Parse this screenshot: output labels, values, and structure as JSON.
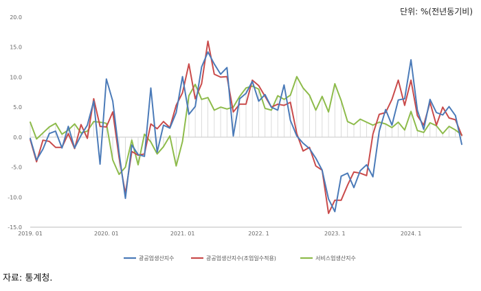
{
  "unit_label": "단위: %(전년동기비)",
  "source_label": "자료: 통계청.",
  "chart_data": {
    "type": "line",
    "title": "",
    "xlabel": "",
    "ylabel": "",
    "ylim": [
      -15,
      20
    ],
    "yticks": [
      "20.0",
      "15.0",
      "10.0",
      "5.0",
      "0.0",
      "-5.0",
      "-10.0",
      "-15.0"
    ],
    "ytick_values": [
      20,
      15,
      10,
      5,
      0,
      -5,
      -10,
      -15
    ],
    "xticks": [
      {
        "label": "2019. 01",
        "index": 0
      },
      {
        "label": "2020. 01",
        "index": 12
      },
      {
        "label": "2021. 01",
        "index": 24
      },
      {
        "label": "2022. 1",
        "index": 36
      },
      {
        "label": "2023. 1",
        "index": 48
      },
      {
        "label": "2024. 1",
        "index": 60
      }
    ],
    "legend_position": "bottom",
    "grid": false,
    "series": [
      {
        "name": "광공업생산지수",
        "color": "#4a7ab8",
        "values": [
          -0.2,
          -3.8,
          -2.0,
          0.6,
          1.0,
          -1.8,
          1.8,
          -1.8,
          0.3,
          2.0,
          6.0,
          -4.5,
          9.7,
          6.0,
          -2.6,
          -10.2,
          -1.3,
          -2.9,
          -3.2,
          8.2,
          -2.5,
          2.0,
          1.5,
          4.1,
          10.1,
          3.8,
          5.1,
          11.7,
          14.2,
          12.2,
          10.5,
          11.6,
          0.2,
          6.4,
          7.3,
          9.3,
          6.0,
          7.1,
          5.0,
          4.5,
          8.7,
          2.8,
          0.2,
          -1.0,
          -1.9,
          -3.5,
          -5.5,
          -10.3,
          -12.4,
          -6.5,
          -6.0,
          -8.4,
          -5.6,
          -4.6,
          -6.6,
          1.0,
          4.6,
          2.0,
          6.2,
          6.4,
          12.9,
          4.5,
          1.3,
          6.3,
          4.1,
          3.7,
          5.1,
          3.6,
          -1.2
        ]
      },
      {
        "name": "광공업생산지수(조업일수적용)",
        "color": "#c94a4a",
        "values": [
          -0.4,
          -4.1,
          -0.5,
          -0.7,
          -1.7,
          -1.7,
          0.6,
          -1.9,
          2.1,
          -0.2,
          6.4,
          1.8,
          1.7,
          4.2,
          -3.4,
          -9.4,
          -2.4,
          -3.0,
          -2.8,
          2.2,
          1.4,
          2.6,
          1.6,
          5.3,
          7.4,
          12.2,
          6.4,
          8.9,
          16.0,
          10.5,
          10.0,
          10.1,
          4.2,
          5.5,
          5.5,
          9.5,
          8.6,
          6.8,
          5.0,
          5.5,
          5.3,
          5.8,
          0.6,
          -2.3,
          -1.7,
          -4.8,
          -5.5,
          -12.7,
          -10.5,
          -10.5,
          -8.0,
          -5.8,
          -6.0,
          -6.4,
          0.5,
          3.8,
          4.1,
          6.3,
          9.5,
          5.3,
          9.5,
          3.6,
          2.0,
          5.8,
          2.0,
          5.0,
          3.2,
          2.9,
          0.3
        ]
      },
      {
        "name": "서비스업생산지수",
        "color": "#8dbb4a",
        "values": [
          2.5,
          -0.3,
          0.7,
          1.7,
          2.3,
          0.5,
          1.2,
          2.2,
          0.7,
          1.0,
          2.6,
          2.5,
          2.3,
          -3.8,
          -6.2,
          -5.0,
          -0.5,
          -4.6,
          0.5,
          -0.8,
          -2.8,
          -1.6,
          0.2,
          -4.8,
          -0.7,
          6.9,
          8.8,
          6.3,
          6.6,
          4.5,
          5.0,
          4.7,
          5.0,
          6.8,
          8.2,
          8.5,
          8.0,
          4.8,
          4.5,
          6.9,
          6.3,
          7.0,
          10.1,
          8.2,
          7.0,
          4.5,
          6.8,
          4.2,
          8.9,
          6.1,
          2.6,
          2.1,
          3.0,
          2.5,
          2.0,
          2.5,
          2.2,
          1.6,
          2.5,
          1.2,
          4.3,
          1.1,
          0.8,
          2.4,
          1.9,
          0.6,
          1.8,
          1.2,
          0.4
        ]
      }
    ]
  }
}
